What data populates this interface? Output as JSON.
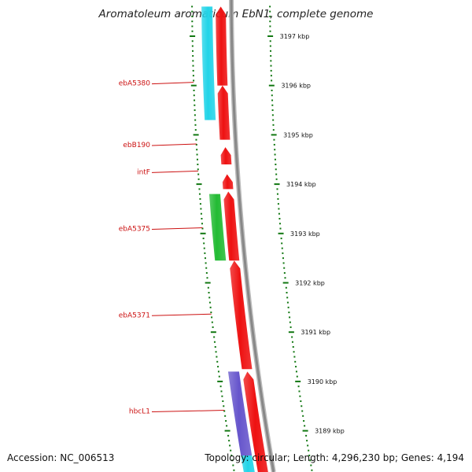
{
  "title": "Aromatoleum aromaticum EbN1, complete genome",
  "footer": {
    "accession": "Accession: NC_006513",
    "summary": "Topology: circular; Length: 4,296,230 bp; Genes: 4,194"
  },
  "colors": {
    "forward_gene": "#ee1111",
    "reverse_cyan": "#22d4e8",
    "reverse_green": "#22bb33",
    "reverse_purple": "#6655cc",
    "backbone": "#888888",
    "tick": "#117711",
    "gene_label": "#cc1111"
  },
  "scale": {
    "unit": "kbp",
    "ticks": [
      {
        "label": "3197 kbp",
        "value": 3197
      },
      {
        "label": "3196 kbp",
        "value": 3196
      },
      {
        "label": "3195 kbp",
        "value": 3195
      },
      {
        "label": "3194 kbp",
        "value": 3194
      },
      {
        "label": "3193 kbp",
        "value": 3193
      },
      {
        "label": "3192 kbp",
        "value": 3192
      },
      {
        "label": "3191 kbp",
        "value": 3191
      },
      {
        "label": "3190 kbp",
        "value": 3190
      },
      {
        "label": "3189 kbp",
        "value": 3189
      }
    ]
  },
  "genes": [
    {
      "strand": "forward",
      "color": "forward_gene",
      "start": 3196.0,
      "end": 3197.6
    },
    {
      "strand": "forward",
      "color": "forward_gene",
      "start": 3194.9,
      "end": 3196.0
    },
    {
      "strand": "forward",
      "color": "forward_gene",
      "start": 3194.4,
      "end": 3194.75
    },
    {
      "strand": "forward",
      "color": "forward_gene",
      "start": 3193.9,
      "end": 3194.2
    },
    {
      "strand": "forward",
      "color": "forward_gene",
      "start": 3192.45,
      "end": 3193.85
    },
    {
      "strand": "forward",
      "color": "forward_gene",
      "start": 3190.25,
      "end": 3192.45
    },
    {
      "strand": "forward",
      "color": "forward_gene",
      "start": 3188.0,
      "end": 3190.2
    },
    {
      "strand": "reverse",
      "color": "reverse_cyan",
      "start": 3195.3,
      "end": 3197.6
    },
    {
      "strand": "reverse",
      "color": "reverse_green",
      "start": 3192.45,
      "end": 3193.8
    },
    {
      "strand": "reverse",
      "color": "reverse_purple",
      "start": 3188.5,
      "end": 3190.2
    },
    {
      "strand": "reverse",
      "color": "reverse_cyan",
      "start": 3188.0,
      "end": 3188.5
    }
  ],
  "gene_labels": [
    {
      "text": "ebA5380",
      "value": 3196.05
    },
    {
      "text": "ebB190",
      "value": 3194.8
    },
    {
      "text": "intF",
      "value": 3194.25
    },
    {
      "text": "ebA5375",
      "value": 3193.1
    },
    {
      "text": "ebA5371",
      "value": 3191.35
    },
    {
      "text": "hbcL1",
      "value": 3189.4
    }
  ]
}
